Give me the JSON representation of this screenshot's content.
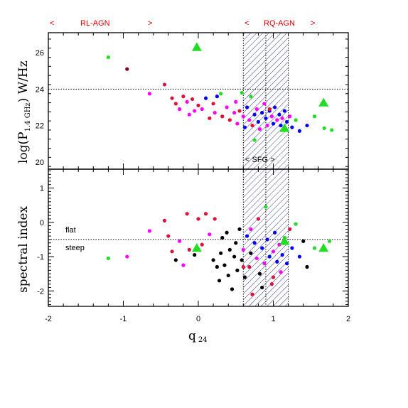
{
  "top_annotations": {
    "rl_left": "<",
    "rl_label": "RL-AGN",
    "rl_right": ">",
    "rq_left": "<",
    "rq_label": "RQ-AGN",
    "rq_right": ">"
  },
  "sfg_label": "< SFG >",
  "flat_label": "flat",
  "steep_label": "steep",
  "colors": {
    "red": "#e0103a",
    "magenta": "#ff00ff",
    "blue": "#0000ff",
    "green": "#22dd22",
    "black": "#000000",
    "maroon": "#800020",
    "annotation": "#e00000"
  },
  "chart_data": [
    {
      "type": "scatter",
      "panel": "top",
      "ylabel_main": "log(P",
      "ylabel_sub": "1.4 GHz",
      "ylabel_end": ") W/Hz",
      "xlim": [
        -2,
        2
      ],
      "ylim": [
        19.6,
        27.1
      ],
      "yticks": [
        20,
        22,
        24,
        26
      ],
      "reference_line_y": 24,
      "sfg_band_x": [
        0.6,
        1.2
      ],
      "sfg_band_median_x": 0.9,
      "points": [
        {
          "x": -1.2,
          "y": 25.75,
          "c": "green"
        },
        {
          "x": -0.95,
          "y": 25.1,
          "c": "maroon"
        },
        {
          "x": -0.65,
          "y": 23.75,
          "c": "magenta"
        },
        {
          "x": -0.45,
          "y": 24.25,
          "c": "red"
        },
        {
          "x": -0.35,
          "y": 23.5,
          "c": "red"
        },
        {
          "x": -0.3,
          "y": 23.2,
          "c": "red"
        },
        {
          "x": -0.25,
          "y": 22.9,
          "c": "magenta"
        },
        {
          "x": -0.2,
          "y": 23.6,
          "c": "red"
        },
        {
          "x": -0.15,
          "y": 23.3,
          "c": "magenta"
        },
        {
          "x": -0.12,
          "y": 22.6,
          "c": "magenta"
        },
        {
          "x": -0.08,
          "y": 23.45,
          "c": "red"
        },
        {
          "x": -0.05,
          "y": 22.8,
          "c": "magenta"
        },
        {
          "x": 0.0,
          "y": 23.1,
          "c": "red"
        },
        {
          "x": 0.05,
          "y": 22.9,
          "c": "magenta"
        },
        {
          "x": 0.1,
          "y": 23.5,
          "c": "blue"
        },
        {
          "x": 0.15,
          "y": 22.4,
          "c": "red"
        },
        {
          "x": 0.2,
          "y": 23.2,
          "c": "red"
        },
        {
          "x": 0.22,
          "y": 22.7,
          "c": "magenta"
        },
        {
          "x": 0.25,
          "y": 23.6,
          "c": "blue"
        },
        {
          "x": 0.3,
          "y": 23.75,
          "c": "green"
        },
        {
          "x": 0.32,
          "y": 22.5,
          "c": "red"
        },
        {
          "x": 0.38,
          "y": 23.0,
          "c": "magenta"
        },
        {
          "x": 0.42,
          "y": 22.3,
          "c": "red"
        },
        {
          "x": 0.48,
          "y": 22.7,
          "c": "magenta"
        },
        {
          "x": 0.5,
          "y": 23.3,
          "c": "magenta"
        },
        {
          "x": 0.52,
          "y": 22.1,
          "c": "magenta"
        },
        {
          "x": 0.55,
          "y": 22.8,
          "c": "red"
        },
        {
          "x": 0.6,
          "y": 22.5,
          "c": "magenta"
        },
        {
          "x": 0.62,
          "y": 21.9,
          "c": "blue"
        },
        {
          "x": 0.65,
          "y": 23.0,
          "c": "blue"
        },
        {
          "x": 0.68,
          "y": 22.3,
          "c": "magenta"
        },
        {
          "x": 0.7,
          "y": 23.6,
          "c": "green"
        },
        {
          "x": 0.72,
          "y": 22.0,
          "c": "red"
        },
        {
          "x": 0.75,
          "y": 22.6,
          "c": "blue"
        },
        {
          "x": 0.78,
          "y": 22.9,
          "c": "magenta"
        },
        {
          "x": 0.8,
          "y": 22.2,
          "c": "blue"
        },
        {
          "x": 0.82,
          "y": 21.8,
          "c": "magenta"
        },
        {
          "x": 0.85,
          "y": 22.7,
          "c": "blue"
        },
        {
          "x": 0.88,
          "y": 23.2,
          "c": "magenta"
        },
        {
          "x": 0.9,
          "y": 22.4,
          "c": "blue"
        },
        {
          "x": 0.92,
          "y": 22.0,
          "c": "magenta"
        },
        {
          "x": 0.95,
          "y": 22.8,
          "c": "blue"
        },
        {
          "x": 0.98,
          "y": 22.5,
          "c": "magenta"
        },
        {
          "x": 1.0,
          "y": 22.1,
          "c": "blue"
        },
        {
          "x": 1.02,
          "y": 23.0,
          "c": "blue"
        },
        {
          "x": 1.05,
          "y": 22.3,
          "c": "magenta"
        },
        {
          "x": 1.08,
          "y": 22.6,
          "c": "blue"
        },
        {
          "x": 1.1,
          "y": 22.0,
          "c": "blue"
        },
        {
          "x": 1.12,
          "y": 22.4,
          "c": "magenta"
        },
        {
          "x": 1.15,
          "y": 22.8,
          "c": "blue"
        },
        {
          "x": 1.18,
          "y": 22.2,
          "c": "blue"
        },
        {
          "x": 1.22,
          "y": 22.5,
          "c": "magenta"
        },
        {
          "x": 1.25,
          "y": 21.9,
          "c": "blue"
        },
        {
          "x": 1.3,
          "y": 22.3,
          "c": "green"
        },
        {
          "x": 1.35,
          "y": 21.7,
          "c": "blue"
        },
        {
          "x": 1.45,
          "y": 22.0,
          "c": "blue"
        },
        {
          "x": 1.55,
          "y": 22.5,
          "c": "green"
        },
        {
          "x": 1.68,
          "y": 21.85,
          "c": "green"
        },
        {
          "x": 1.78,
          "y": 21.75,
          "c": "green"
        },
        {
          "x": 0.75,
          "y": 21.2,
          "c": "green"
        },
        {
          "x": 0.95,
          "y": 22.9,
          "c": "red"
        },
        {
          "x": 0.58,
          "y": 23.8,
          "c": "green"
        }
      ],
      "triangles": [
        {
          "x": -0.02,
          "y": 26.3,
          "c": "green"
        },
        {
          "x": 1.15,
          "y": 21.85,
          "c": "green"
        },
        {
          "x": 1.67,
          "y": 23.25,
          "c": "green"
        }
      ]
    },
    {
      "type": "scatter",
      "panel": "bottom",
      "ylabel": "spectral index",
      "xlabel_main": "q",
      "xlabel_sub": "24",
      "xlim": [
        -2,
        2
      ],
      "ylim": [
        -2.45,
        1.55
      ],
      "xticks": [
        -2,
        -1,
        0,
        1,
        2
      ],
      "yticks": [
        -2,
        -1,
        0,
        1
      ],
      "reference_line_y": -0.5,
      "sfg_band_x": [
        0.6,
        1.2
      ],
      "sfg_band_median_x": 0.9,
      "points": [
        {
          "x": -1.2,
          "y": -1.05,
          "c": "green"
        },
        {
          "x": -0.95,
          "y": -1.0,
          "c": "magenta"
        },
        {
          "x": -0.65,
          "y": -0.25,
          "c": "magenta"
        },
        {
          "x": -0.45,
          "y": 0.05,
          "c": "red"
        },
        {
          "x": -0.4,
          "y": -0.4,
          "c": "red"
        },
        {
          "x": -0.35,
          "y": -0.85,
          "c": "red"
        },
        {
          "x": -0.3,
          "y": -1.1,
          "c": "black"
        },
        {
          "x": -0.25,
          "y": -0.55,
          "c": "magenta"
        },
        {
          "x": -0.2,
          "y": -1.25,
          "c": "magenta"
        },
        {
          "x": -0.15,
          "y": 0.25,
          "c": "red"
        },
        {
          "x": -0.12,
          "y": -0.8,
          "c": "red"
        },
        {
          "x": -0.05,
          "y": -0.95,
          "c": "black"
        },
        {
          "x": 0.0,
          "y": 0.1,
          "c": "red"
        },
        {
          "x": 0.05,
          "y": -0.65,
          "c": "red"
        },
        {
          "x": 0.1,
          "y": 0.25,
          "c": "red"
        },
        {
          "x": 0.15,
          "y": -0.35,
          "c": "magenta"
        },
        {
          "x": 0.2,
          "y": -1.1,
          "c": "black"
        },
        {
          "x": 0.22,
          "y": 0.1,
          "c": "red"
        },
        {
          "x": 0.25,
          "y": -1.3,
          "c": "black"
        },
        {
          "x": 0.28,
          "y": -1.7,
          "c": "black"
        },
        {
          "x": 0.3,
          "y": -0.9,
          "c": "black"
        },
        {
          "x": 0.32,
          "y": -0.45,
          "c": "black"
        },
        {
          "x": 0.35,
          "y": -1.25,
          "c": "black"
        },
        {
          "x": 0.38,
          "y": -0.3,
          "c": "black"
        },
        {
          "x": 0.4,
          "y": -1.55,
          "c": "black"
        },
        {
          "x": 0.42,
          "y": -0.8,
          "c": "black"
        },
        {
          "x": 0.45,
          "y": -1.95,
          "c": "black"
        },
        {
          "x": 0.48,
          "y": -1.0,
          "c": "black"
        },
        {
          "x": 0.5,
          "y": -0.6,
          "c": "black"
        },
        {
          "x": 0.52,
          "y": -1.4,
          "c": "black"
        },
        {
          "x": 0.55,
          "y": -0.2,
          "c": "black"
        },
        {
          "x": 0.58,
          "y": -1.1,
          "c": "black"
        },
        {
          "x": 0.6,
          "y": -0.8,
          "c": "magenta"
        },
        {
          "x": 0.62,
          "y": -1.6,
          "c": "black"
        },
        {
          "x": 0.65,
          "y": -0.4,
          "c": "blue"
        },
        {
          "x": 0.68,
          "y": -1.3,
          "c": "red"
        },
        {
          "x": 0.7,
          "y": -0.9,
          "c": "black"
        },
        {
          "x": 0.72,
          "y": -2.1,
          "c": "red"
        },
        {
          "x": 0.75,
          "y": -0.6,
          "c": "blue"
        },
        {
          "x": 0.78,
          "y": -1.05,
          "c": "magenta"
        },
        {
          "x": 0.8,
          "y": 0.1,
          "c": "red"
        },
        {
          "x": 0.82,
          "y": -1.5,
          "c": "black"
        },
        {
          "x": 0.85,
          "y": -0.75,
          "c": "blue"
        },
        {
          "x": 0.88,
          "y": -1.2,
          "c": "magenta"
        },
        {
          "x": 0.9,
          "y": 0.45,
          "c": "green"
        },
        {
          "x": 0.92,
          "y": -0.5,
          "c": "blue"
        },
        {
          "x": 0.95,
          "y": -1.0,
          "c": "blue"
        },
        {
          "x": 0.98,
          "y": -1.8,
          "c": "red"
        },
        {
          "x": 1.0,
          "y": -0.85,
          "c": "magenta"
        },
        {
          "x": 1.02,
          "y": -0.3,
          "c": "blue"
        },
        {
          "x": 1.05,
          "y": -1.15,
          "c": "blue"
        },
        {
          "x": 1.08,
          "y": -0.65,
          "c": "magenta"
        },
        {
          "x": 1.1,
          "y": -1.45,
          "c": "magenta"
        },
        {
          "x": 1.12,
          "y": -0.95,
          "c": "blue"
        },
        {
          "x": 1.15,
          "y": -0.45,
          "c": "green"
        },
        {
          "x": 1.18,
          "y": -1.2,
          "c": "blue"
        },
        {
          "x": 1.22,
          "y": -0.2,
          "c": "red"
        },
        {
          "x": 1.25,
          "y": -0.75,
          "c": "blue"
        },
        {
          "x": 1.3,
          "y": -0.05,
          "c": "green"
        },
        {
          "x": 1.35,
          "y": -1.0,
          "c": "blue"
        },
        {
          "x": 1.4,
          "y": -0.55,
          "c": "black"
        },
        {
          "x": 1.45,
          "y": -1.3,
          "c": "black"
        },
        {
          "x": 1.55,
          "y": -0.75,
          "c": "green"
        },
        {
          "x": 1.75,
          "y": -0.55,
          "c": "green"
        },
        {
          "x": 0.85,
          "y": -1.9,
          "c": "black"
        },
        {
          "x": 0.7,
          "y": -0.2,
          "c": "magenta"
        },
        {
          "x": 1.0,
          "y": -1.6,
          "c": "red"
        },
        {
          "x": 0.6,
          "y": -1.3,
          "c": "red"
        }
      ],
      "triangles": [
        {
          "x": -0.02,
          "y": -0.75,
          "c": "green"
        },
        {
          "x": 1.15,
          "y": -0.55,
          "c": "green"
        },
        {
          "x": 1.67,
          "y": -0.75,
          "c": "green"
        }
      ]
    }
  ]
}
